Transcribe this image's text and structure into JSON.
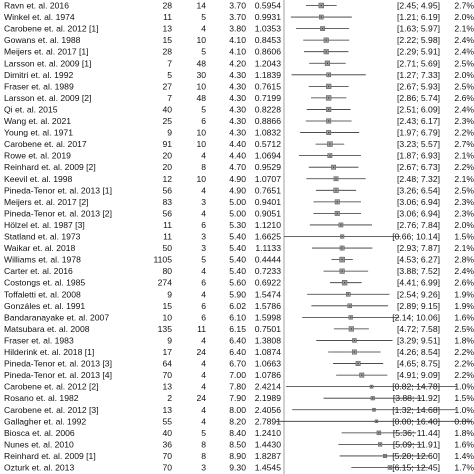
{
  "chart_data": {
    "type": "forest",
    "title": "",
    "xlabel": "",
    "ylabel": "",
    "columns": [
      "study",
      "n",
      "events",
      "estimate",
      "se",
      "ci",
      "weight"
    ],
    "rows": [
      {
        "study": "Ravn et. al. 2016",
        "n": "28",
        "events": "14",
        "estimate": "3.70",
        "se": "0.5954",
        "ci": "[2.45; 4.95]",
        "weight": "2.7%",
        "est": 3.7,
        "lo": 2.45,
        "hi": 4.95
      },
      {
        "study": "Winkel et. al. 1974",
        "n": "11",
        "events": "5",
        "estimate": "3.70",
        "se": "0.9931",
        "ci": "[1.21; 6.19]",
        "weight": "2.0%",
        "est": 3.7,
        "lo": 1.21,
        "hi": 6.19
      },
      {
        "study": "Carobene et. al. 2012 [1]",
        "n": "13",
        "events": "4",
        "estimate": "3.80",
        "se": "1.0353",
        "ci": "[1.63; 5.97]",
        "weight": "2.1%",
        "est": 3.8,
        "lo": 1.63,
        "hi": 5.97
      },
      {
        "study": "Gowans et. al. 1988",
        "n": "15",
        "events": "10",
        "estimate": "4.10",
        "se": "0.8453",
        "ci": "[2.22; 5.98]",
        "weight": "2.4%",
        "est": 4.1,
        "lo": 2.22,
        "hi": 5.98
      },
      {
        "study": "Meijers et. al. 2017 [1]",
        "n": "28",
        "events": "5",
        "estimate": "4.10",
        "se": "0.8606",
        "ci": "[2.29; 5.91]",
        "weight": "2.4%",
        "est": 4.1,
        "lo": 2.29,
        "hi": 5.91
      },
      {
        "study": "Larsson et. al. 2009 [1]",
        "n": "7",
        "events": "48",
        "estimate": "4.20",
        "se": "1.2043",
        "ci": "[2.71; 5.69]",
        "weight": "2.5%",
        "est": 4.2,
        "lo": 2.71,
        "hi": 5.69
      },
      {
        "study": "Dimitri et. al. 1992",
        "n": "5",
        "events": "30",
        "estimate": "4.30",
        "se": "1.1839",
        "ci": "[1.27; 7.33]",
        "weight": "2.0%",
        "est": 4.3,
        "lo": 1.27,
        "hi": 7.33
      },
      {
        "study": "Fraser et. al. 1989",
        "n": "27",
        "events": "10",
        "estimate": "4.30",
        "se": "0.7615",
        "ci": "[2.67; 5.93]",
        "weight": "2.5%",
        "est": 4.3,
        "lo": 2.67,
        "hi": 5.93
      },
      {
        "study": "Larsson et. al. 2009 [2]",
        "n": "7",
        "events": "48",
        "estimate": "4.30",
        "se": "0.7199",
        "ci": "[2.86; 5.74]",
        "weight": "2.6%",
        "est": 4.3,
        "lo": 2.86,
        "hi": 5.74
      },
      {
        "study": "Qi et. al. 2015",
        "n": "40",
        "events": "5",
        "estimate": "4.30",
        "se": "0.8228",
        "ci": "[2.51; 6.09]",
        "weight": "2.4%",
        "est": 4.3,
        "lo": 2.51,
        "hi": 6.09
      },
      {
        "study": "Wang et. al. 2021",
        "n": "25",
        "events": "6",
        "estimate": "4.30",
        "se": "0.8866",
        "ci": "[2.43; 6.17]",
        "weight": "2.3%",
        "est": 4.3,
        "lo": 2.43,
        "hi": 6.17
      },
      {
        "study": "Young et. al. 1971",
        "n": "9",
        "events": "10",
        "estimate": "4.30",
        "se": "1.0832",
        "ci": "[1.97; 6.79]",
        "weight": "2.2%",
        "est": 4.3,
        "lo": 1.97,
        "hi": 6.79
      },
      {
        "study": "Carobene et. al. 2017",
        "n": "91",
        "events": "10",
        "estimate": "4.40",
        "se": "0.5712",
        "ci": "[3.23; 5.57]",
        "weight": "2.7%",
        "est": 4.4,
        "lo": 3.23,
        "hi": 5.57
      },
      {
        "study": "Rowe et. al. 2019",
        "n": "20",
        "events": "4",
        "estimate": "4.40",
        "se": "1.0694",
        "ci": "[1.87; 6.93]",
        "weight": "2.1%",
        "est": 4.4,
        "lo": 1.87,
        "hi": 6.93
      },
      {
        "study": "Reinhard et. al. 2009 [2]",
        "n": "20",
        "events": "8",
        "estimate": "4.70",
        "se": "0.9529",
        "ci": "[2.67; 6.73]",
        "weight": "2.2%",
        "est": 4.7,
        "lo": 2.67,
        "hi": 6.73
      },
      {
        "study": "Keevil et. al. 1998",
        "n": "12",
        "events": "10",
        "estimate": "4.90",
        "se": "1.0707",
        "ci": "[2.48; 7.32]",
        "weight": "2.1%",
        "est": 4.9,
        "lo": 2.48,
        "hi": 7.32
      },
      {
        "study": "Pineda-Tenor et. al. 2013 [1]",
        "n": "56",
        "events": "4",
        "estimate": "4.90",
        "se": "0.7651",
        "ci": "[3.26; 6.54]",
        "weight": "2.5%",
        "est": 4.9,
        "lo": 3.26,
        "hi": 6.54
      },
      {
        "study": "Meijers et. al. 2017 [2]",
        "n": "83",
        "events": "3",
        "estimate": "5.00",
        "se": "0.9401",
        "ci": "[3.06; 6.94]",
        "weight": "2.3%",
        "est": 5.0,
        "lo": 3.06,
        "hi": 6.94
      },
      {
        "study": "Pineda-Tenor et. al. 2013 [2]",
        "n": "56",
        "events": "4",
        "estimate": "5.00",
        "se": "0.9051",
        "ci": "[3.06; 6.94]",
        "weight": "2.3%",
        "est": 5.0,
        "lo": 3.06,
        "hi": 6.94
      },
      {
        "study": "Hölzel et. al. 1987 [3]",
        "n": "11",
        "events": "6",
        "estimate": "5.30",
        "se": "1.1210",
        "ci": "[2.76; 7.84]",
        "weight": "2.0%",
        "est": 5.3,
        "lo": 2.76,
        "hi": 7.84
      },
      {
        "study": "Statland et. al. 1973",
        "n": "11",
        "events": "3",
        "estimate": "5.40",
        "se": "1.6625",
        "ci": "[0.66; 10.14]",
        "weight": "1.5%",
        "est": 5.4,
        "lo": 0.66,
        "hi": 10.14
      },
      {
        "study": "Waikar et. al. 2018",
        "n": "50",
        "events": "3",
        "estimate": "5.40",
        "se": "1.1133",
        "ci": "[2.93; 7.87]",
        "weight": "2.1%",
        "est": 5.4,
        "lo": 2.93,
        "hi": 7.87
      },
      {
        "study": "Williams et. al. 1978",
        "n": "1105",
        "events": "5",
        "estimate": "5.40",
        "se": "0.4444",
        "ci": "[4.53; 6.27]",
        "weight": "2.8%",
        "est": 5.4,
        "lo": 4.53,
        "hi": 6.27
      },
      {
        "study": "Carter et. al. 2016",
        "n": "80",
        "events": "4",
        "estimate": "5.40",
        "se": "0.7233",
        "ci": "[3.88; 7.52]",
        "weight": "2.4%",
        "est": 5.4,
        "lo": 3.88,
        "hi": 7.52
      },
      {
        "study": "Costongs et. al. 1985",
        "n": "274",
        "events": "6",
        "estimate": "5.60",
        "se": "0.6922",
        "ci": "[4.41; 6.99]",
        "weight": "2.6%",
        "est": 5.6,
        "lo": 4.41,
        "hi": 6.99
      },
      {
        "study": "Toffaletti et. al. 2008",
        "n": "9",
        "events": "4",
        "estimate": "5.90",
        "se": "1.5474",
        "ci": "[2.54; 9.26]",
        "weight": "1.9%",
        "est": 5.9,
        "lo": 2.54,
        "hi": 9.26
      },
      {
        "study": "Gonzáles et. al. 1991",
        "n": "15",
        "events": "6",
        "estimate": "6.02",
        "se": "1.5786",
        "ci": "[2.89; 9.15]",
        "weight": "1.9%",
        "est": 6.02,
        "lo": 2.89,
        "hi": 9.15
      },
      {
        "study": "Bandaranayake et. al. 2007",
        "n": "10",
        "events": "6",
        "estimate": "6.10",
        "se": "1.5998",
        "ci": "[2.14; 10.06]",
        "weight": "1.6%",
        "est": 6.1,
        "lo": 2.14,
        "hi": 10.06
      },
      {
        "study": "Matsubara et. al. 2008",
        "n": "135",
        "events": "11",
        "estimate": "6.15",
        "se": "0.7501",
        "ci": "[4.72; 7.58]",
        "weight": "2.5%",
        "est": 6.15,
        "lo": 4.72,
        "hi": 7.58
      },
      {
        "study": "Fraser et. al. 1983",
        "n": "9",
        "events": "4",
        "estimate": "6.40",
        "se": "1.3808",
        "ci": "[3.29; 9.51]",
        "weight": "1.8%",
        "est": 6.4,
        "lo": 3.29,
        "hi": 9.51
      },
      {
        "study": "Hilderink et. al. 2018 [1]",
        "n": "17",
        "events": "24",
        "estimate": "6.40",
        "se": "1.0874",
        "ci": "[4.26; 8.54]",
        "weight": "2.2%",
        "est": 6.4,
        "lo": 4.26,
        "hi": 8.54
      },
      {
        "study": "Pineda-Tenor et. al. 2013 [3]",
        "n": "64",
        "events": "4",
        "estimate": "6.70",
        "se": "1.0663",
        "ci": "[4.65; 8.75]",
        "weight": "2.2%",
        "est": 6.7,
        "lo": 4.65,
        "hi": 8.75
      },
      {
        "study": "Pineda-Tenor et. al. 2013 [4]",
        "n": "70",
        "events": "4",
        "estimate": "7.00",
        "se": "1.0786",
        "ci": "[4.91; 9.09]",
        "weight": "2.2%",
        "est": 7.0,
        "lo": 4.91,
        "hi": 9.09
      },
      {
        "study": "Carobene et. al. 2012 [2]",
        "n": "13",
        "events": "4",
        "estimate": "7.80",
        "se": "2.4214",
        "ci": "[0.82; 14.78]",
        "weight": "1.0%",
        "est": 7.8,
        "lo": 0.82,
        "hi": 14.78
      },
      {
        "study": "Rosano et. al. 1982",
        "n": "2",
        "events": "24",
        "estimate": "7.90",
        "se": "2.1989",
        "ci": "[3.88; 11.92]",
        "weight": "1.5%",
        "est": 7.9,
        "lo": 3.88,
        "hi": 11.92
      },
      {
        "study": "Carobene et. al. 2012 [3]",
        "n": "13",
        "events": "4",
        "estimate": "8.00",
        "se": "2.4056",
        "ci": "[1.32; 14.68]",
        "weight": "1.0%",
        "est": 8.0,
        "lo": 1.32,
        "hi": 14.68
      },
      {
        "study": "Gallagher et. al. 1992",
        "n": "55",
        "events": "4",
        "estimate": "8.20",
        "se": "2.7891",
        "ci": "[0.00; 16.40]",
        "weight": "0.8%",
        "est": 8.2,
        "lo": 0.0,
        "hi": 16.4
      },
      {
        "study": "Biosca et. al. 2006",
        "n": "40",
        "events": "5",
        "estimate": "8.40",
        "se": "1.2410",
        "ci": "[5.36; 11.44]",
        "weight": "1.8%",
        "est": 8.4,
        "lo": 5.36,
        "hi": 11.44
      },
      {
        "study": "Nunes et. al. 2010",
        "n": "36",
        "events": "8",
        "estimate": "8.50",
        "se": "1.4430",
        "ci": "[5.09; 11.91]",
        "weight": "1.6%",
        "est": 8.5,
        "lo": 5.09,
        "hi": 11.91
      },
      {
        "study": "Reinhard et. al. 2009 [1]",
        "n": "70",
        "events": "8",
        "estimate": "8.90",
        "se": "1.8287",
        "ci": "[5.20; 12.60]",
        "weight": "1.4%",
        "est": 8.9,
        "lo": 5.2,
        "hi": 12.6
      },
      {
        "study": "Ozturk et. al. 2013",
        "n": "70",
        "events": "3",
        "estimate": "9.30",
        "se": "1.4545",
        "ci": "[6.15; 12.45]",
        "weight": "1.7%",
        "est": 9.3,
        "lo": 6.15,
        "hi": 12.45
      }
    ]
  }
}
